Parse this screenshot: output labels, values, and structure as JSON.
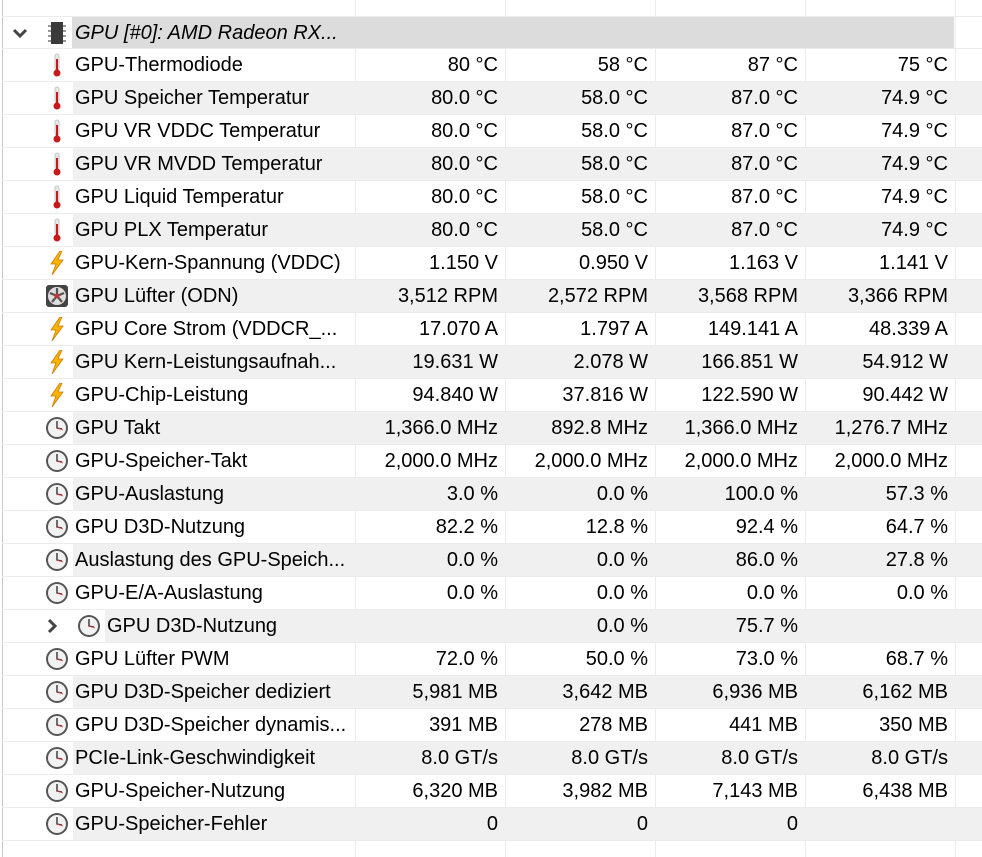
{
  "group": {
    "title": "GPU [#0]: AMD Radeon RX...",
    "icon": "chip-icon",
    "expanded": true
  },
  "rows": [
    {
      "name": "GPU-Thermodiode",
      "icon": "thermometer-icon",
      "values": [
        "80 °C",
        "58 °C",
        "87 °C",
        "75 °C"
      ]
    },
    {
      "name": "GPU Speicher Temperatur",
      "icon": "thermometer-icon",
      "values": [
        "80.0 °C",
        "58.0 °C",
        "87.0 °C",
        "74.9 °C"
      ]
    },
    {
      "name": "GPU VR VDDC Temperatur",
      "icon": "thermometer-icon",
      "values": [
        "80.0 °C",
        "58.0 °C",
        "87.0 °C",
        "74.9 °C"
      ]
    },
    {
      "name": "GPU VR MVDD Temperatur",
      "icon": "thermometer-icon",
      "values": [
        "80.0 °C",
        "58.0 °C",
        "87.0 °C",
        "74.9 °C"
      ]
    },
    {
      "name": "GPU Liquid Temperatur",
      "icon": "thermometer-icon",
      "values": [
        "80.0 °C",
        "58.0 °C",
        "87.0 °C",
        "74.9 °C"
      ]
    },
    {
      "name": "GPU PLX Temperatur",
      "icon": "thermometer-icon",
      "values": [
        "80.0 °C",
        "58.0 °C",
        "87.0 °C",
        "74.9 °C"
      ]
    },
    {
      "name": "GPU-Kern-Spannung (VDDC)",
      "icon": "lightning-icon",
      "values": [
        "1.150 V",
        "0.950 V",
        "1.163 V",
        "1.141 V"
      ]
    },
    {
      "name": "GPU Lüfter (ODN)",
      "icon": "fan-icon",
      "values": [
        "3,512 RPM",
        "2,572 RPM",
        "3,568 RPM",
        "3,366 RPM"
      ]
    },
    {
      "name": "GPU Core Strom (VDDCR_...",
      "icon": "lightning-icon",
      "values": [
        "17.070 A",
        "1.797 A",
        "149.141 A",
        "48.339 A"
      ]
    },
    {
      "name": "GPU Kern-Leistungsaufnah...",
      "icon": "lightning-icon",
      "values": [
        "19.631 W",
        "2.078 W",
        "166.851 W",
        "54.912 W"
      ]
    },
    {
      "name": "GPU-Chip-Leistung",
      "icon": "lightning-icon",
      "values": [
        "94.840 W",
        "37.816 W",
        "122.590 W",
        "90.442 W"
      ]
    },
    {
      "name": "GPU Takt",
      "icon": "clock-icon",
      "values": [
        "1,366.0 MHz",
        "892.8 MHz",
        "1,366.0 MHz",
        "1,276.7 MHz"
      ]
    },
    {
      "name": "GPU-Speicher-Takt",
      "icon": "clock-icon",
      "values": [
        "2,000.0 MHz",
        "2,000.0 MHz",
        "2,000.0 MHz",
        "2,000.0 MHz"
      ]
    },
    {
      "name": "GPU-Auslastung",
      "icon": "clock-icon",
      "values": [
        "3.0 %",
        "0.0 %",
        "100.0 %",
        "57.3 %"
      ]
    },
    {
      "name": "GPU D3D-Nutzung",
      "icon": "clock-icon",
      "values": [
        "82.2 %",
        "12.8 %",
        "92.4 %",
        "64.7 %"
      ]
    },
    {
      "name": "Auslastung des GPU-Speich...",
      "icon": "clock-icon",
      "values": [
        "0.0 %",
        "0.0 %",
        "86.0 %",
        "27.8 %"
      ]
    },
    {
      "name": "GPU-E/A-Auslastung",
      "icon": "clock-icon",
      "values": [
        "0.0 %",
        "0.0 %",
        "0.0 %",
        "0.0 %"
      ]
    },
    {
      "name": "GPU D3D-Nutzung",
      "icon": "clock-icon",
      "sub": true,
      "values": [
        "",
        "0.0 %",
        "75.7 %",
        ""
      ]
    },
    {
      "name": "GPU Lüfter PWM",
      "icon": "clock-icon",
      "values": [
        "72.0 %",
        "50.0 %",
        "73.0 %",
        "68.7 %"
      ]
    },
    {
      "name": "GPU D3D-Speicher dediziert",
      "icon": "clock-icon",
      "values": [
        "5,981 MB",
        "3,642 MB",
        "6,936 MB",
        "6,162 MB"
      ]
    },
    {
      "name": "GPU D3D-Speicher dynamis...",
      "icon": "clock-icon",
      "values": [
        "391 MB",
        "278 MB",
        "441 MB",
        "350 MB"
      ]
    },
    {
      "name": "PCIe-Link-Geschwindigkeit",
      "icon": "clock-icon",
      "values": [
        "8.0 GT/s",
        "8.0 GT/s",
        "8.0 GT/s",
        "8.0 GT/s"
      ]
    },
    {
      "name": "GPU-Speicher-Nutzung",
      "icon": "clock-icon",
      "values": [
        "6,320 MB",
        "3,982 MB",
        "7,143 MB",
        "6,438 MB"
      ]
    },
    {
      "name": "GPU-Speicher-Fehler",
      "icon": "clock-icon",
      "values": [
        "0",
        "0",
        "0",
        ""
      ]
    }
  ]
}
